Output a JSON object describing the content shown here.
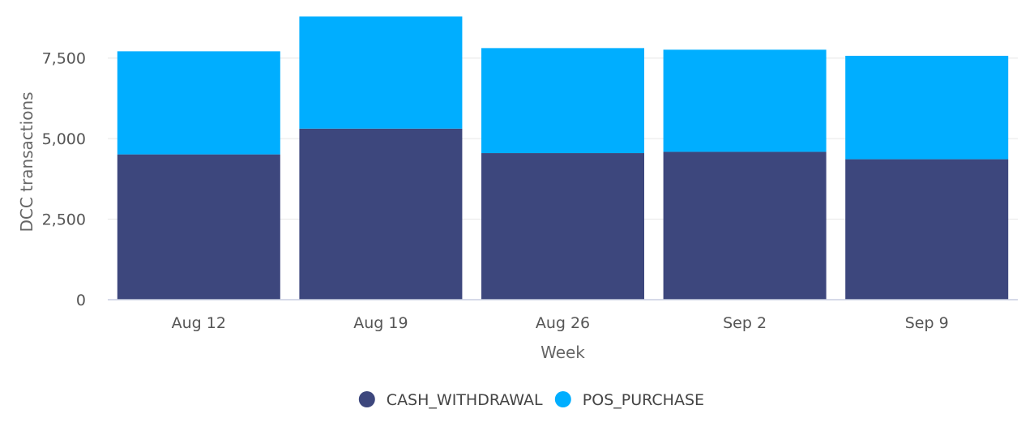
{
  "chart_data": {
    "type": "bar",
    "stacked": true,
    "title": "",
    "xlabel": "Week",
    "ylabel": "DCC transactions",
    "categories": [
      "Aug 12",
      "Aug 19",
      "Aug 26",
      "Sep 2",
      "Sep 9"
    ],
    "series": [
      {
        "name": "CASH_WITHDRAWAL",
        "color": "#3d477d",
        "values": [
          4510,
          5310,
          4550,
          4590,
          4360
        ]
      },
      {
        "name": "POS_PURCHASE",
        "color": "#00aeff",
        "values": [
          3200,
          3480,
          3260,
          3170,
          3210
        ]
      }
    ],
    "ylim": [
      0,
      8800
    ],
    "yticks": [
      0,
      2500,
      5000,
      7500
    ],
    "ytick_labels": [
      "0",
      "2,500",
      "5,000",
      "7,500"
    ],
    "grid": true,
    "legend": "bottom-center"
  }
}
